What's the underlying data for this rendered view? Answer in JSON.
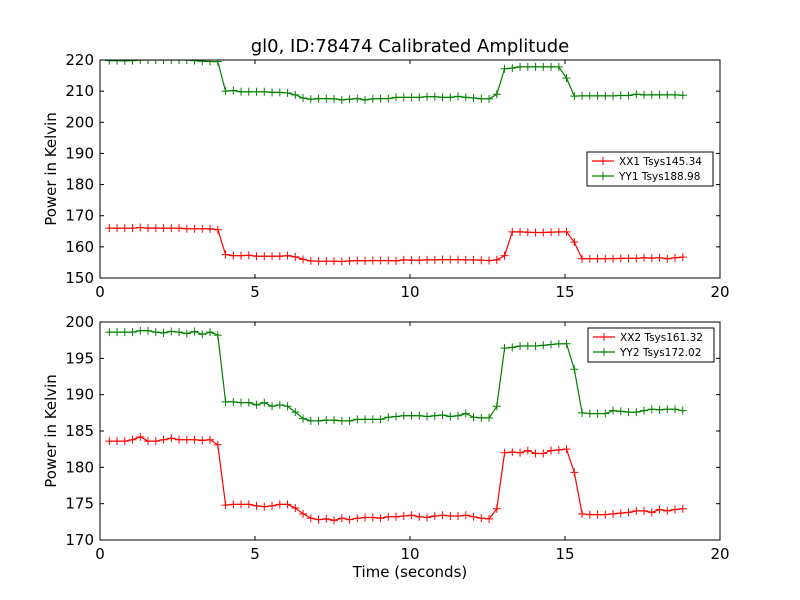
{
  "figure": {
    "title": "gl0, ID:78474 Calibrated Amplitude",
    "xlabel": "Time (seconds)"
  },
  "chart_data": [
    {
      "type": "line",
      "title": "gl0, ID:78474 Calibrated Amplitude",
      "xlabel": "",
      "ylabel": "Power in Kelvin",
      "xlim": [
        0,
        20
      ],
      "ylim": [
        150,
        220
      ],
      "xticks": [
        0,
        5,
        10,
        15,
        20
      ],
      "yticks": [
        150,
        160,
        170,
        180,
        190,
        200,
        210,
        220
      ],
      "grid": false,
      "legend_position": "center-right",
      "series": [
        {
          "name": "XX1 Tsys145.34",
          "color": "#ff0000",
          "x": [
            0.3,
            0.55,
            0.8,
            1.05,
            1.3,
            1.55,
            1.8,
            2.05,
            2.3,
            2.55,
            2.8,
            3.05,
            3.3,
            3.55,
            3.8,
            4.05,
            4.3,
            4.55,
            4.8,
            5.05,
            5.3,
            5.55,
            5.8,
            6.05,
            6.3,
            6.55,
            6.8,
            7.05,
            7.3,
            7.55,
            7.8,
            8.05,
            8.3,
            8.55,
            8.8,
            9.05,
            9.3,
            9.55,
            9.8,
            10.05,
            10.3,
            10.55,
            10.8,
            11.05,
            11.3,
            11.55,
            11.8,
            12.05,
            12.3,
            12.55,
            12.8,
            13.05,
            13.3,
            13.55,
            13.8,
            14.05,
            14.3,
            14.55,
            14.8,
            15.05,
            15.3,
            15.55,
            15.8,
            16.05,
            16.3,
            16.55,
            16.8,
            17.05,
            17.3,
            17.55,
            17.8,
            18.05,
            18.3,
            18.55,
            18.8
          ],
          "values": [
            166.0,
            166.0,
            166.0,
            166.0,
            166.2,
            166.0,
            166.0,
            166.0,
            166.0,
            166.0,
            165.8,
            165.8,
            165.8,
            165.8,
            165.5,
            157.5,
            157.2,
            157.2,
            157.3,
            157.0,
            157.0,
            157.0,
            157.0,
            157.2,
            156.8,
            156.0,
            155.5,
            155.4,
            155.4,
            155.4,
            155.3,
            155.5,
            155.6,
            155.5,
            155.6,
            155.6,
            155.6,
            155.5,
            155.8,
            155.7,
            155.7,
            155.8,
            155.8,
            155.9,
            155.9,
            155.9,
            155.8,
            155.8,
            155.7,
            155.6,
            155.8,
            157.2,
            164.8,
            164.8,
            164.7,
            164.6,
            164.6,
            164.7,
            164.8,
            164.8,
            161.5,
            156.2,
            156.2,
            156.2,
            156.2,
            156.2,
            156.3,
            156.3,
            156.3,
            156.5,
            156.4,
            156.5,
            156.2,
            156.5,
            156.7
          ]
        },
        {
          "name": "YY1 Tsys188.98",
          "color": "#008000",
          "x": [
            0.3,
            0.55,
            0.8,
            1.05,
            1.3,
            1.55,
            1.8,
            2.05,
            2.3,
            2.55,
            2.8,
            3.05,
            3.3,
            3.55,
            3.8,
            4.05,
            4.3,
            4.55,
            4.8,
            5.05,
            5.3,
            5.55,
            5.8,
            6.05,
            6.3,
            6.55,
            6.8,
            7.05,
            7.3,
            7.55,
            7.8,
            8.05,
            8.3,
            8.55,
            8.8,
            9.05,
            9.3,
            9.55,
            9.8,
            10.05,
            10.3,
            10.55,
            10.8,
            11.05,
            11.3,
            11.55,
            11.8,
            12.05,
            12.3,
            12.55,
            12.8,
            13.05,
            13.3,
            13.55,
            13.8,
            14.05,
            14.3,
            14.55,
            14.8,
            15.05,
            15.3,
            15.55,
            15.8,
            16.05,
            16.3,
            16.55,
            16.8,
            17.05,
            17.3,
            17.55,
            17.8,
            18.05,
            18.3,
            18.55,
            18.8
          ],
          "values": [
            219.8,
            219.8,
            219.7,
            219.8,
            220.0,
            220.0,
            220.0,
            220.0,
            220.0,
            220.0,
            220.0,
            219.8,
            219.6,
            219.5,
            219.5,
            210.0,
            210.2,
            209.8,
            209.8,
            209.8,
            209.8,
            209.6,
            209.6,
            209.4,
            208.8,
            207.8,
            207.4,
            207.6,
            207.6,
            207.5,
            207.2,
            207.4,
            207.6,
            207.2,
            207.5,
            207.6,
            207.6,
            208.0,
            208.0,
            208.0,
            208.0,
            208.2,
            208.2,
            208.0,
            208.0,
            208.3,
            208.0,
            207.8,
            207.5,
            207.5,
            209.0,
            217.2,
            217.4,
            217.8,
            217.8,
            217.8,
            217.8,
            217.8,
            217.8,
            214.2,
            208.4,
            208.5,
            208.5,
            208.5,
            208.5,
            208.5,
            208.6,
            208.6,
            209.0,
            208.8,
            208.8,
            208.8,
            208.8,
            208.8,
            208.7
          ]
        }
      ]
    },
    {
      "type": "line",
      "title": "",
      "xlabel": "Time (seconds)",
      "ylabel": "Power in Kelvin",
      "xlim": [
        0,
        20
      ],
      "ylim": [
        170,
        200
      ],
      "xticks": [
        0,
        5,
        10,
        15,
        20
      ],
      "yticks": [
        170,
        175,
        180,
        185,
        190,
        195,
        200
      ],
      "grid": false,
      "legend_position": "top-right",
      "series": [
        {
          "name": "XX2 Tsys161.32",
          "color": "#ff0000",
          "x": [
            0.3,
            0.55,
            0.8,
            1.05,
            1.3,
            1.55,
            1.8,
            2.05,
            2.3,
            2.55,
            2.8,
            3.05,
            3.3,
            3.55,
            3.8,
            4.05,
            4.3,
            4.55,
            4.8,
            5.05,
            5.3,
            5.55,
            5.8,
            6.05,
            6.3,
            6.55,
            6.8,
            7.05,
            7.3,
            7.55,
            7.8,
            8.05,
            8.3,
            8.55,
            8.8,
            9.05,
            9.3,
            9.55,
            9.8,
            10.05,
            10.3,
            10.55,
            10.8,
            11.05,
            11.3,
            11.55,
            11.8,
            12.05,
            12.3,
            12.55,
            12.8,
            13.05,
            13.3,
            13.55,
            13.8,
            14.05,
            14.3,
            14.55,
            14.8,
            15.05,
            15.3,
            15.55,
            15.8,
            16.05,
            16.3,
            16.55,
            16.8,
            17.05,
            17.3,
            17.55,
            17.8,
            18.05,
            18.3,
            18.55,
            18.8
          ],
          "values": [
            183.6,
            183.6,
            183.6,
            183.8,
            184.2,
            183.6,
            183.6,
            183.8,
            184.0,
            183.8,
            183.8,
            183.8,
            183.7,
            183.8,
            183.1,
            174.8,
            174.9,
            174.9,
            174.9,
            174.7,
            174.6,
            174.7,
            174.9,
            174.9,
            174.4,
            173.6,
            173.0,
            172.8,
            172.9,
            172.7,
            173.0,
            172.8,
            173.0,
            173.1,
            173.1,
            173.0,
            173.2,
            173.2,
            173.3,
            173.4,
            173.2,
            173.1,
            173.3,
            173.4,
            173.3,
            173.3,
            173.4,
            173.2,
            173.0,
            172.9,
            174.3,
            182.0,
            182.1,
            182.0,
            182.3,
            181.9,
            181.9,
            182.3,
            182.4,
            182.5,
            179.3,
            173.6,
            173.5,
            173.5,
            173.5,
            173.6,
            173.7,
            173.8,
            174.0,
            174.0,
            173.8,
            174.2,
            174.0,
            174.2,
            174.3
          ]
        },
        {
          "name": "YY2 Tsys172.02",
          "color": "#008000",
          "x": [
            0.3,
            0.55,
            0.8,
            1.05,
            1.3,
            1.55,
            1.8,
            2.05,
            2.3,
            2.55,
            2.8,
            3.05,
            3.3,
            3.55,
            3.8,
            4.05,
            4.3,
            4.55,
            4.8,
            5.05,
            5.3,
            5.55,
            5.8,
            6.05,
            6.3,
            6.55,
            6.8,
            7.05,
            7.3,
            7.55,
            7.8,
            8.05,
            8.3,
            8.55,
            8.8,
            9.05,
            9.3,
            9.55,
            9.8,
            10.05,
            10.3,
            10.55,
            10.8,
            11.05,
            11.3,
            11.55,
            11.8,
            12.05,
            12.3,
            12.55,
            12.8,
            13.05,
            13.3,
            13.55,
            13.8,
            14.05,
            14.3,
            14.55,
            14.8,
            15.05,
            15.3,
            15.55,
            15.8,
            16.05,
            16.3,
            16.55,
            16.8,
            17.05,
            17.3,
            17.55,
            17.8,
            18.05,
            18.3,
            18.55,
            18.8
          ],
          "values": [
            198.6,
            198.6,
            198.6,
            198.6,
            198.8,
            198.8,
            198.6,
            198.5,
            198.7,
            198.6,
            198.4,
            198.7,
            198.3,
            198.6,
            198.2,
            189.0,
            189.0,
            188.9,
            188.9,
            188.6,
            188.9,
            188.4,
            188.6,
            188.4,
            187.6,
            186.7,
            186.4,
            186.4,
            186.5,
            186.5,
            186.4,
            186.4,
            186.6,
            186.6,
            186.6,
            186.6,
            186.9,
            187.0,
            187.1,
            187.1,
            187.1,
            187.0,
            187.1,
            187.2,
            187.0,
            187.1,
            187.4,
            186.9,
            186.8,
            186.8,
            188.4,
            196.4,
            196.5,
            196.7,
            196.7,
            196.7,
            196.8,
            196.9,
            197.0,
            197.0,
            193.5,
            187.5,
            187.4,
            187.4,
            187.4,
            187.8,
            187.7,
            187.6,
            187.6,
            187.8,
            188.0,
            187.9,
            188.0,
            188.0,
            187.8
          ]
        }
      ]
    }
  ]
}
